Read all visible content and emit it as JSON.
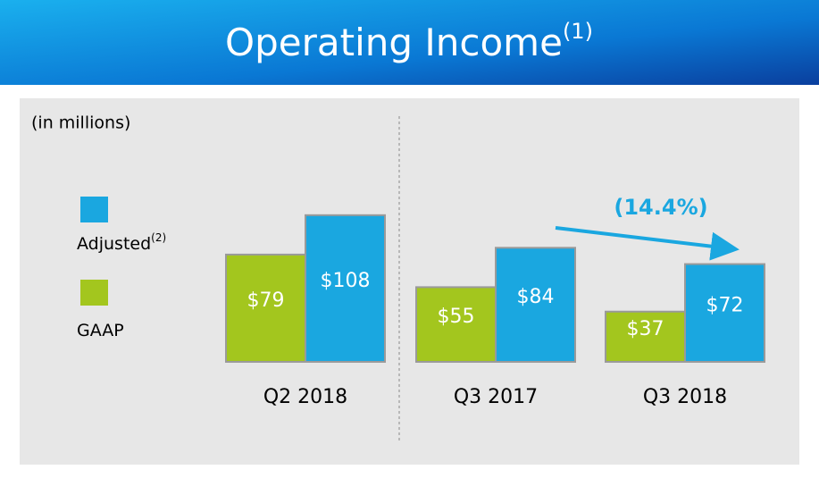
{
  "chart_data": {
    "type": "bar",
    "title": "Operating Income",
    "title_note": "(1)",
    "subtitle": "(in millions)",
    "categories": [
      "Q2 2018",
      "Q3 2017",
      "Q3 2018"
    ],
    "series": [
      {
        "name": "GAAP",
        "color": "#a3c61e",
        "values": [
          79,
          55,
          37
        ],
        "value_labels": [
          "$79",
          "$55",
          "$37"
        ]
      },
      {
        "name": "Adjusted",
        "name_note": "(2)",
        "color": "#1aa7e0",
        "values": [
          108,
          84,
          72
        ],
        "value_labels": [
          "$108",
          "$84",
          "$72"
        ]
      }
    ],
    "annotation": "(14.4%)",
    "annotation_color": "#1aa7e0"
  }
}
